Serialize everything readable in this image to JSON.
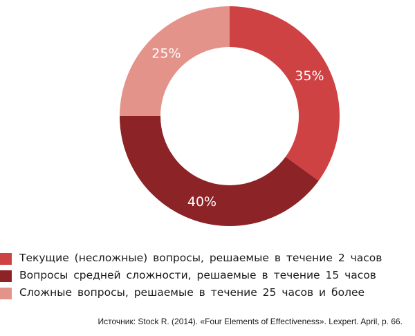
{
  "chart_data": {
    "type": "pie",
    "donut": true,
    "categories": [
      "Текущие  (несложные)   вопросы,  решаемые   в течение  2 часов",
      "Вопросы  средней  сложности,   решаемые   в течение  15  часов",
      "Сложные  вопросы,  решаемые   в течение  25  часов  и более"
    ],
    "values": [
      35,
      40,
      25
    ],
    "data_labels": [
      "35%",
      "40%",
      "25%"
    ],
    "colors": [
      "#cf4244",
      "#8c2326",
      "#e3938a"
    ],
    "legend_placement": "bottom-left"
  },
  "source": "Источник: Stock R. (2014). «Four Elements of Effectiveness». Lexpert. April, p. 66."
}
